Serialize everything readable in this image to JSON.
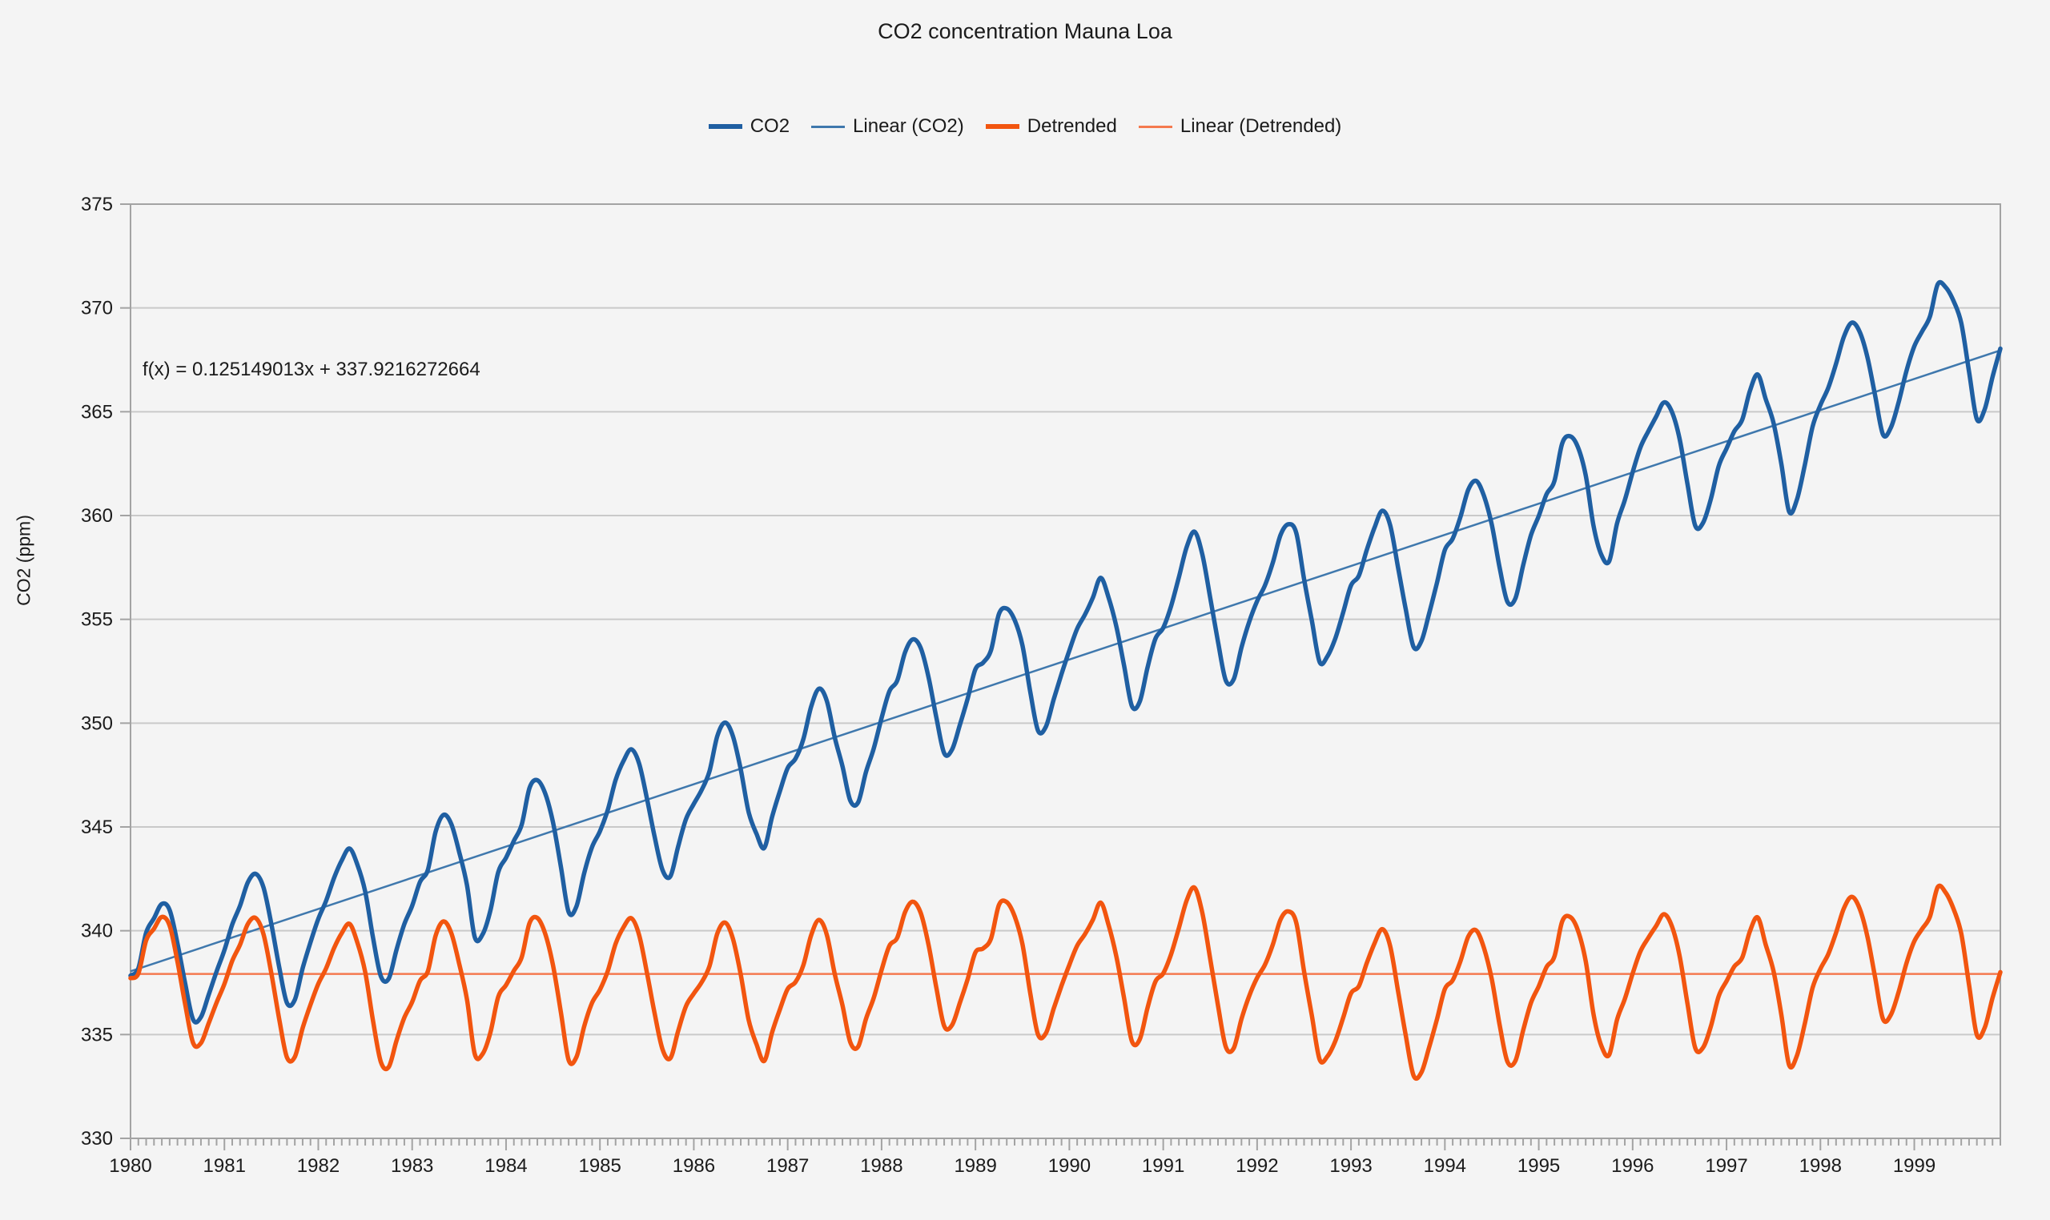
{
  "title": "CO2 concentration Mauna Loa",
  "legend": [
    {
      "label": "CO2",
      "color": "#1f5fa2",
      "style": "thick"
    },
    {
      "label": "Linear (CO2)",
      "color": "#3f78ad",
      "style": "thin"
    },
    {
      "label": "Detrended",
      "color": "#f2550f",
      "style": "thick"
    },
    {
      "label": "Linear (Detrended)",
      "color": "#f4794f",
      "style": "thin"
    }
  ],
  "annotation": {
    "equation": "f(x) = 0.125149013x + 337.9216272664"
  },
  "colors": {
    "background": "#f4f4f4",
    "gridline": "#c9c9c9",
    "axis_border": "#a3a3a3",
    "text": "#1b1b1b",
    "co2_line": "#1f5fa2",
    "linear_co2_line": "#3f78ad",
    "detrended_line": "#f2550f",
    "linear_detrended_line": "#f4794f"
  },
  "chart_data": {
    "type": "line",
    "title": "CO2 concentration Mauna Loa",
    "xlabel": "",
    "ylabel": "CO2 (ppm)",
    "ylim": [
      330,
      375
    ],
    "yticks": [
      330,
      335,
      340,
      345,
      350,
      355,
      360,
      365,
      370,
      375
    ],
    "grid": "horizontal",
    "legend_position": "top-center",
    "x_unit": "monthly",
    "x_years": [
      1980,
      1981,
      1982,
      1983,
      1984,
      1985,
      1986,
      1987,
      1988,
      1989,
      1990,
      1991,
      1992,
      1993,
      1994,
      1995,
      1996,
      1997,
      1998,
      1999
    ],
    "months_per_year": 12,
    "trend": {
      "name": "Linear (CO2)",
      "slope": 0.125149013,
      "intercept": 337.9216272664,
      "x_domain": [
        1,
        240
      ],
      "equation": "f(x) = 0.125149013x + 337.9216272664"
    },
    "flat_line": {
      "name": "Linear (Detrended)",
      "value": 337.9216272664
    },
    "series": [
      {
        "name": "CO2",
        "color": "#1f5fa2",
        "values": [
          337.84,
          338.19,
          339.91,
          340.6,
          341.29,
          341.0,
          339.39,
          337.43,
          335.72,
          335.84,
          336.93,
          338.04,
          339.06,
          340.3,
          341.21,
          342.33,
          342.74,
          342.08,
          340.32,
          338.26,
          336.52,
          336.68,
          338.19,
          339.44,
          340.57,
          341.44,
          342.53,
          343.39,
          343.96,
          343.18,
          341.88,
          339.65,
          337.81,
          337.69,
          339.09,
          340.32,
          341.2,
          342.35,
          342.93,
          344.77,
          345.58,
          345.14,
          343.81,
          342.21,
          339.69,
          339.82,
          340.98,
          342.82,
          343.52,
          344.33,
          345.11,
          346.88,
          347.25,
          346.62,
          345.22,
          343.11,
          340.9,
          341.18,
          342.8,
          344.04,
          344.79,
          345.82,
          347.25,
          348.17,
          348.74,
          348.07,
          346.38,
          344.51,
          342.92,
          342.62,
          344.06,
          345.38,
          346.11,
          346.78,
          347.68,
          349.37,
          350.03,
          349.37,
          347.76,
          345.73,
          344.68,
          343.99,
          345.48,
          346.72,
          347.84,
          348.29,
          349.23,
          350.8,
          351.66,
          351.07,
          349.33,
          347.92,
          346.27,
          346.18,
          347.64,
          348.78,
          350.25,
          351.54,
          352.05,
          353.41,
          354.04,
          353.62,
          352.22,
          350.27,
          348.55,
          348.72,
          349.91,
          351.18,
          352.6,
          352.92,
          353.53,
          355.26,
          355.52,
          354.97,
          353.75,
          351.52,
          349.64,
          349.83,
          351.14,
          352.37,
          353.5,
          354.55,
          355.23,
          356.04,
          357.0,
          356.07,
          354.67,
          352.76,
          350.82,
          351.04,
          352.69,
          354.07,
          354.59,
          355.63,
          357.03,
          358.48,
          359.22,
          358.12,
          356.06,
          353.92,
          352.05,
          352.11,
          353.64,
          354.89,
          355.88,
          356.63,
          357.72,
          359.07,
          359.58,
          359.17,
          356.94,
          354.92,
          352.94,
          353.23,
          354.09,
          355.33,
          356.63,
          357.1,
          358.32,
          359.41,
          360.23,
          359.55,
          357.53,
          355.48,
          353.67,
          353.95,
          355.3,
          356.78,
          358.34,
          358.89,
          359.95,
          361.25,
          361.67,
          360.94,
          359.55,
          357.49,
          355.84,
          356.0,
          357.59,
          359.05,
          359.98,
          361.03,
          361.66,
          363.48,
          363.82,
          363.3,
          361.94,
          359.5,
          358.11,
          357.8,
          359.61,
          360.74,
          362.09,
          363.29,
          364.06,
          364.76,
          365.45,
          365.01,
          363.7,
          361.54,
          359.51,
          359.65,
          360.8,
          362.38,
          363.23,
          364.06,
          364.61,
          366.02,
          366.79,
          365.62,
          364.47,
          362.51,
          360.19,
          360.77,
          362.43,
          364.28,
          365.32,
          366.15,
          367.31,
          368.61,
          369.29,
          368.87,
          367.64,
          365.77,
          363.9,
          364.23,
          365.46,
          366.97,
          368.15,
          368.87,
          369.59,
          371.14,
          371.0,
          370.35,
          369.27,
          366.93,
          364.64,
          365.12,
          366.67,
          368.04
        ]
      },
      {
        "name": "Detrended",
        "color": "#f2550f",
        "values_derivation": "Detrended[i] = CO2[i] - 0.125149013 * (i + 1), oscillating around 337.92"
      }
    ]
  }
}
